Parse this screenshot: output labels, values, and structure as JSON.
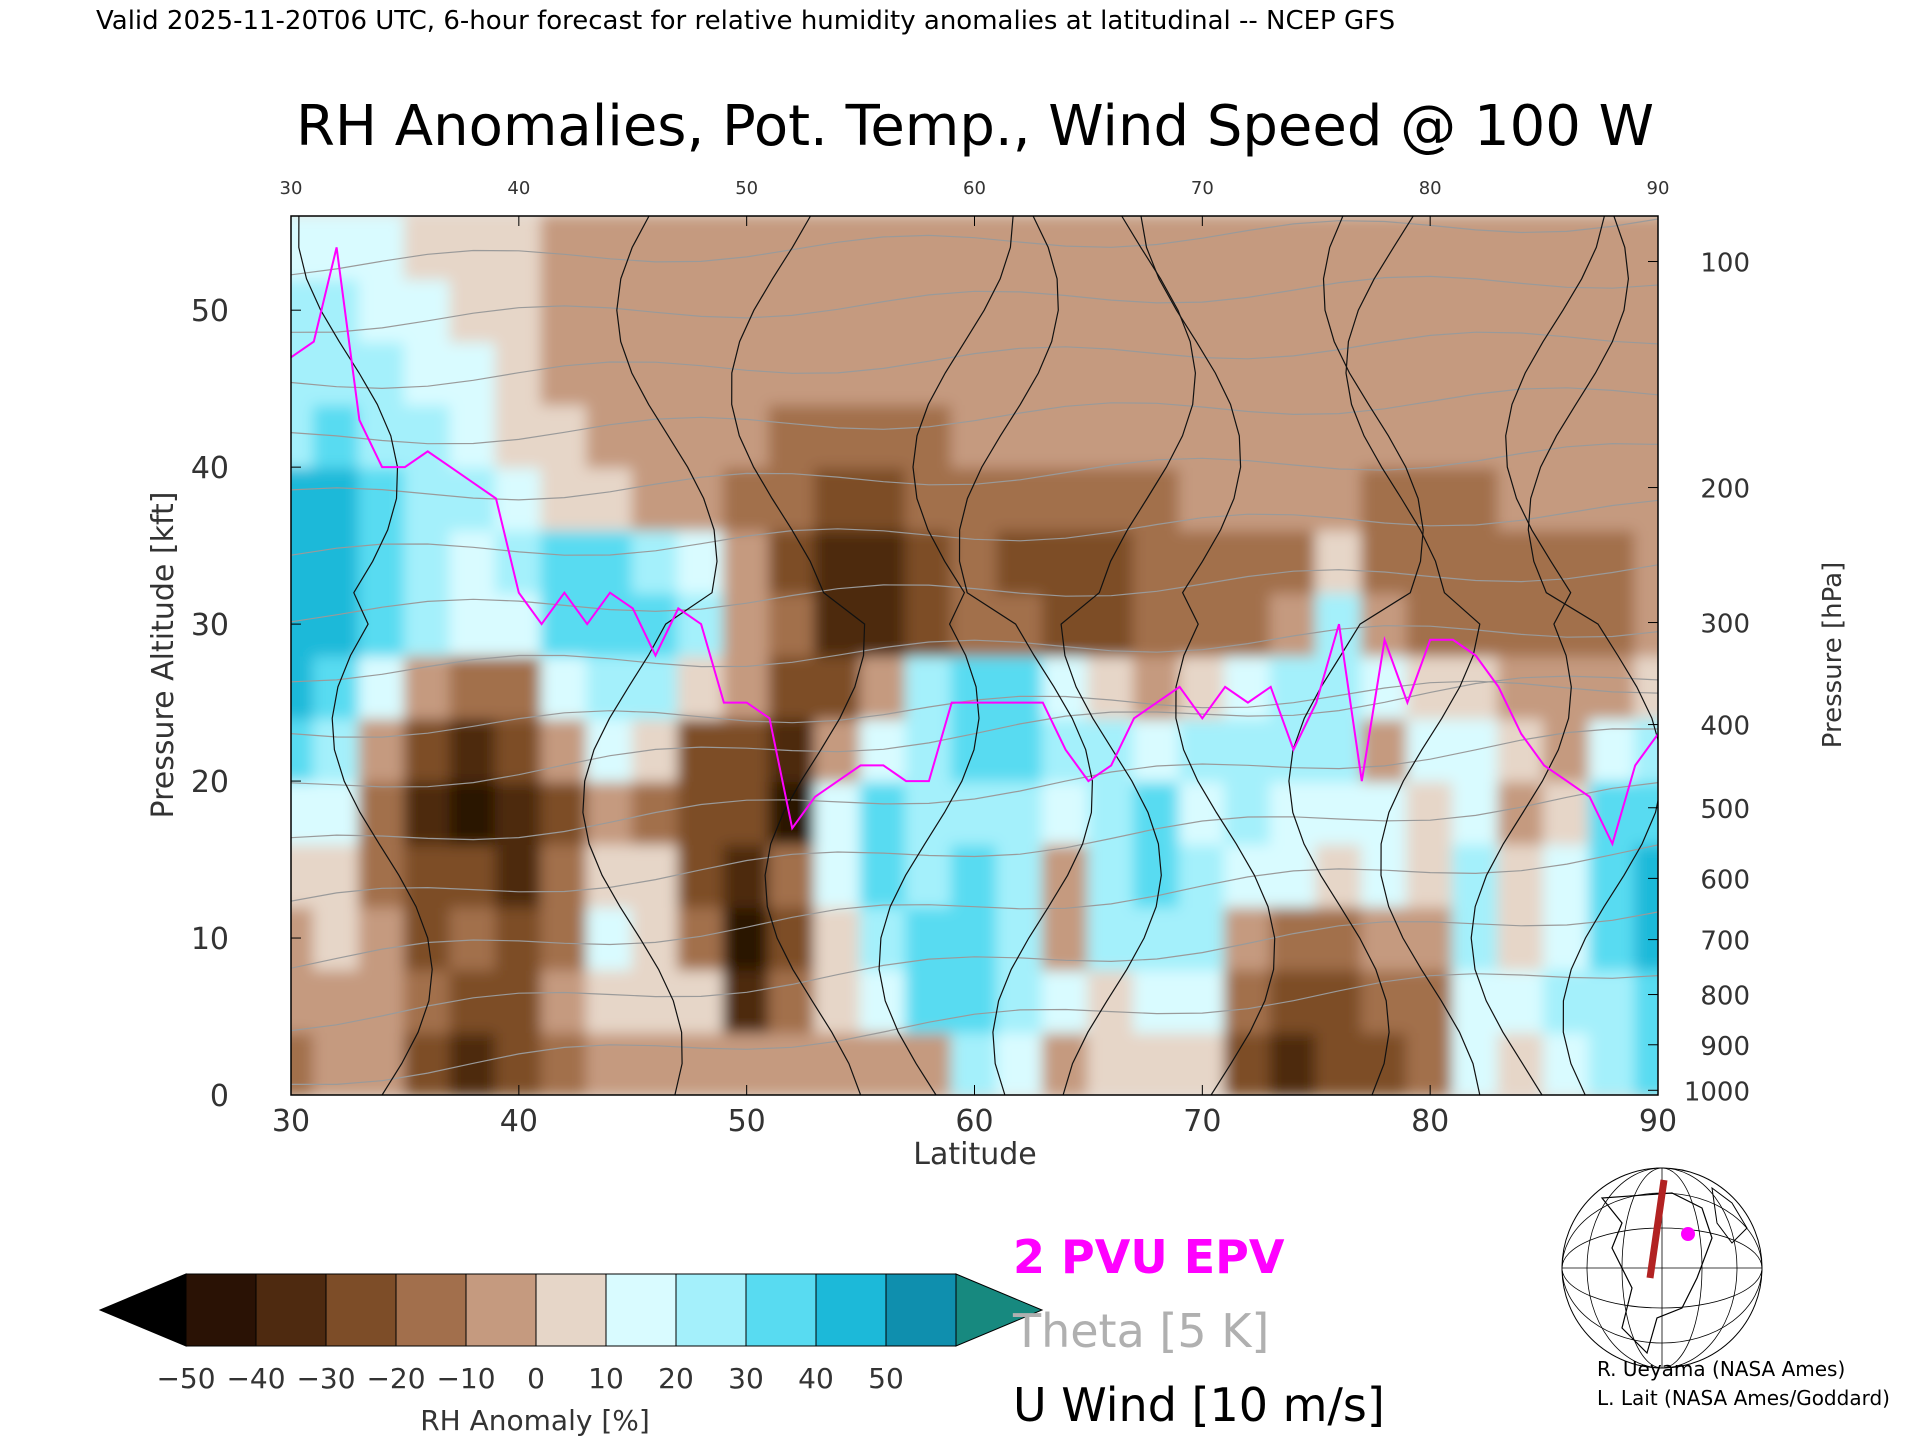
{
  "header": {
    "valid_line": "Valid 2025-11-20T06 UTC, 6-hour forecast for relative humidity anomalies at latitudinal -- NCEP GFS",
    "title": "RH Anomalies, Pot. Temp., Wind Speed @ 100 W"
  },
  "chart_data": {
    "type": "heatmap",
    "title": "RH Anomalies, Pot. Temp., Wind Speed @ 100 W",
    "xlabel": "Latitude",
    "ylabel": "Pressure Altitude [kft]",
    "y2label": "Pressure [hPa]",
    "xlim": [
      30,
      90
    ],
    "ylim": [
      0,
      56
    ],
    "x_ticks": [
      30,
      40,
      50,
      60,
      70,
      80,
      90
    ],
    "y_ticks": [
      0,
      10,
      20,
      30,
      40,
      50
    ],
    "pressure_ticks": [
      {
        "hpa": 100,
        "kft": 53.1
      },
      {
        "hpa": 200,
        "kft": 38.7
      },
      {
        "hpa": 300,
        "kft": 30.1
      },
      {
        "hpa": 400,
        "kft": 23.6
      },
      {
        "hpa": 500,
        "kft": 18.3
      },
      {
        "hpa": 600,
        "kft": 13.8
      },
      {
        "hpa": 700,
        "kft": 9.9
      },
      {
        "hpa": 800,
        "kft": 6.4
      },
      {
        "hpa": 900,
        "kft": 3.2
      },
      {
        "hpa": 1000,
        "kft": 0.3
      }
    ],
    "rh_anomaly_field": {
      "lat": [
        30,
        32,
        34,
        36,
        38,
        40,
        42,
        44,
        46,
        48,
        50,
        52,
        54,
        56,
        58,
        60,
        62,
        64,
        66,
        68,
        70,
        72,
        74,
        76,
        78,
        80,
        82,
        84,
        86,
        88,
        90
      ],
      "kft": [
        2,
        6,
        10,
        14,
        18,
        22,
        26,
        30,
        34,
        38,
        42,
        46,
        50,
        54
      ],
      "values": [
        [
          -15,
          -10,
          -5,
          -30,
          -35,
          -30,
          -15,
          -10,
          -10,
          -10,
          -10,
          -5,
          -5,
          -10,
          -5,
          25,
          15,
          -5,
          0,
          5,
          5,
          -30,
          -35,
          -30,
          -30,
          -20,
          10,
          5,
          15,
          20,
          30
        ],
        [
          -10,
          -5,
          -10,
          -20,
          -30,
          -25,
          -10,
          0,
          0,
          5,
          -35,
          -15,
          5,
          10,
          30,
          30,
          20,
          10,
          5,
          10,
          10,
          -20,
          -30,
          -25,
          -20,
          -15,
          15,
          10,
          20,
          25,
          35
        ],
        [
          -5,
          0,
          -10,
          -25,
          -20,
          -25,
          -15,
          10,
          5,
          -20,
          -45,
          -25,
          5,
          25,
          30,
          35,
          20,
          -10,
          20,
          25,
          20,
          -5,
          -20,
          -20,
          -10,
          -10,
          20,
          5,
          15,
          30,
          40
        ],
        [
          0,
          5,
          -15,
          -30,
          -30,
          -35,
          -20,
          5,
          5,
          -25,
          -35,
          -20,
          10,
          30,
          25,
          30,
          20,
          -10,
          25,
          30,
          20,
          15,
          10,
          5,
          10,
          0,
          25,
          0,
          10,
          35,
          40
        ],
        [
          15,
          10,
          -15,
          -40,
          -45,
          -40,
          -25,
          -10,
          -15,
          -30,
          -30,
          -45,
          15,
          30,
          20,
          25,
          25,
          10,
          20,
          30,
          15,
          20,
          15,
          10,
          15,
          5,
          10,
          -10,
          0,
          30,
          35
        ],
        [
          30,
          25,
          -5,
          -30,
          -35,
          -25,
          -10,
          10,
          5,
          -25,
          -25,
          -40,
          -10,
          15,
          20,
          30,
          35,
          20,
          25,
          15,
          20,
          25,
          20,
          20,
          -10,
          10,
          15,
          0,
          -10,
          10,
          20
        ],
        [
          40,
          35,
          10,
          -10,
          -20,
          -15,
          10,
          25,
          25,
          5,
          -10,
          -30,
          -30,
          -10,
          20,
          30,
          30,
          15,
          5,
          -5,
          5,
          15,
          20,
          25,
          10,
          5,
          0,
          -5,
          -10,
          -5,
          5
        ],
        [
          45,
          40,
          30,
          20,
          10,
          15,
          30,
          30,
          30,
          20,
          -5,
          -20,
          -35,
          -35,
          -25,
          -15,
          -20,
          -25,
          -30,
          -20,
          -20,
          -15,
          -10,
          20,
          -10,
          -15,
          -20,
          -20,
          -15,
          -15,
          -10
        ],
        [
          45,
          40,
          35,
          25,
          15,
          25,
          30,
          30,
          25,
          10,
          -10,
          -25,
          -35,
          -35,
          -30,
          -20,
          -25,
          -30,
          -25,
          -20,
          -20,
          -15,
          -15,
          5,
          -15,
          -20,
          -20,
          -20,
          -15,
          -15,
          -10
        ],
        [
          40,
          45,
          30,
          20,
          20,
          15,
          5,
          0,
          -5,
          -10,
          -15,
          -20,
          -25,
          -25,
          -20,
          -15,
          -15,
          -20,
          -15,
          -15,
          -10,
          -10,
          -10,
          -10,
          -15,
          -15,
          -15,
          -10,
          -10,
          -10,
          -5
        ],
        [
          25,
          30,
          25,
          20,
          15,
          5,
          0,
          -5,
          -5,
          -10,
          -10,
          -15,
          -15,
          -15,
          -15,
          -10,
          -10,
          -10,
          -10,
          -10,
          -10,
          -10,
          -10,
          -10,
          -10,
          -10,
          -10,
          -10,
          -10,
          -5,
          -5
        ],
        [
          20,
          25,
          20,
          15,
          10,
          0,
          -5,
          -5,
          -5,
          -10,
          -10,
          -10,
          -10,
          -10,
          -10,
          -10,
          -10,
          -10,
          -10,
          -10,
          -10,
          -10,
          -10,
          -10,
          -10,
          -5,
          -5,
          -5,
          -5,
          -5,
          -5
        ],
        [
          20,
          20,
          15,
          10,
          5,
          0,
          -5,
          -5,
          -5,
          -5,
          -5,
          -5,
          -5,
          -5,
          -5,
          -5,
          -5,
          -5,
          -5,
          -5,
          -5,
          -5,
          -5,
          -5,
          -5,
          -5,
          -5,
          -5,
          -5,
          -5,
          -5
        ],
        [
          15,
          15,
          10,
          5,
          0,
          0,
          -5,
          -5,
          -5,
          -5,
          -5,
          -5,
          -5,
          -5,
          -5,
          -5,
          -5,
          -5,
          -5,
          -5,
          -5,
          -5,
          -5,
          -5,
          -5,
          -5,
          -5,
          -5,
          -5,
          -5,
          -5
        ]
      ]
    },
    "epv_2pvu_line": {
      "lat": [
        30,
        31,
        32,
        33,
        34,
        35,
        36,
        37,
        38,
        39,
        40,
        41,
        42,
        43,
        44,
        45,
        46,
        47,
        48,
        49,
        50,
        51,
        52,
        53,
        54,
        55,
        56,
        57,
        58,
        59,
        60,
        61,
        62,
        63,
        64,
        65,
        66,
        67,
        68,
        69,
        70,
        71,
        72,
        73,
        74,
        75,
        76,
        77,
        78,
        79,
        80,
        81,
        82,
        83,
        84,
        85,
        86,
        87,
        88,
        89,
        90
      ],
      "kft": [
        47,
        48,
        54,
        43,
        40,
        40,
        41,
        40,
        39,
        38,
        32,
        30,
        32,
        30,
        32,
        31,
        28,
        31,
        30,
        25,
        25,
        24,
        17,
        19,
        20,
        21,
        21,
        20,
        20,
        25,
        25,
        25,
        25,
        25,
        22,
        20,
        21,
        24,
        25,
        26,
        24,
        26,
        25,
        26,
        22,
        25,
        30,
        20,
        29,
        25,
        29,
        29,
        28,
        26,
        23,
        21,
        20,
        19,
        16,
        21,
        23
      ]
    },
    "theta_levels_K": [
      280,
      290,
      300,
      310,
      320,
      330,
      340,
      350,
      360,
      370,
      380,
      390,
      400,
      410,
      420
    ],
    "u_wind_levels_ms": [
      -10,
      0,
      10,
      20,
      30
    ],
    "colorbar": {
      "label": "RH Anomaly [%]",
      "ticks": [
        -50,
        -40,
        -30,
        -20,
        -10,
        0,
        10,
        20,
        30,
        40,
        50
      ],
      "tick_labels": [
        "−50",
        "−40",
        "−30",
        "−20",
        "−10",
        "0",
        "10",
        "20",
        "30",
        "40",
        "50"
      ],
      "colors": [
        "#2a1205",
        "#4e2a10",
        "#7d4d28",
        "#a26f4c",
        "#c59a7f",
        "#e6d6c8",
        "#d9fbff",
        "#a4f0fb",
        "#58dbf1",
        "#1cb9d9",
        "#0f8fae"
      ],
      "under_color": "#000000",
      "over_color": "#17897f"
    },
    "legend": [
      {
        "text": "2 PVU EPV",
        "color": "#ff00ff"
      },
      {
        "text": "Theta [5 K]",
        "color": "#b0b0b0"
      },
      {
        "text": "U Wind [10 m/s]",
        "color": "#000000"
      }
    ]
  },
  "credits": {
    "line1": "R. Ueyama (NASA Ames)",
    "line2": "L. Lait (NASA Ames/Goddard)"
  },
  "inset_map": {
    "icon": "globe-map-icon",
    "section_color": "#b22222",
    "point_color": "#ff00ff"
  }
}
